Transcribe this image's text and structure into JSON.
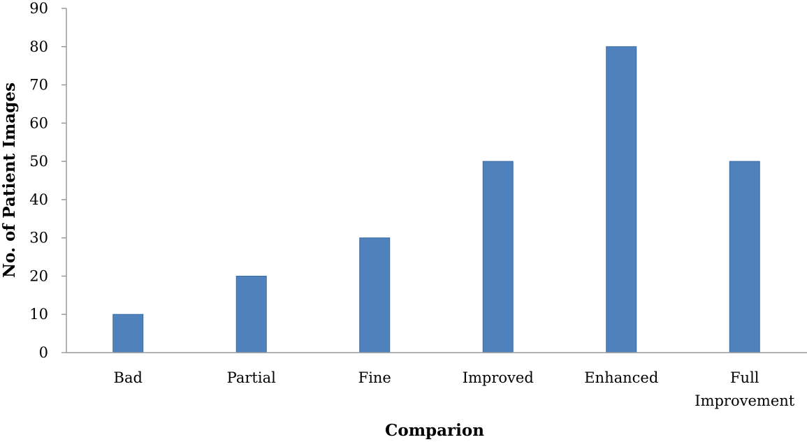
{
  "chart_data": {
    "type": "bar",
    "categories": [
      [
        "Bad"
      ],
      [
        "Partial"
      ],
      [
        "Fine"
      ],
      [
        "Improved"
      ],
      [
        "Enhanced"
      ],
      [
        "Full",
        "Improvement"
      ]
    ],
    "values": [
      10,
      20,
      30,
      50,
      80,
      50
    ],
    "title": "",
    "xlabel": "Comparion",
    "ylabel": "No. of Patient Images",
    "ylim": [
      0,
      90
    ],
    "yticks": [
      0,
      10,
      20,
      30,
      40,
      50,
      60,
      70,
      80,
      90
    ],
    "grid": false,
    "legend": "none",
    "bar_color": "#4f81bd",
    "bar_edge_color": "#3a6aa3",
    "axis_color": "#9a9a9a"
  }
}
